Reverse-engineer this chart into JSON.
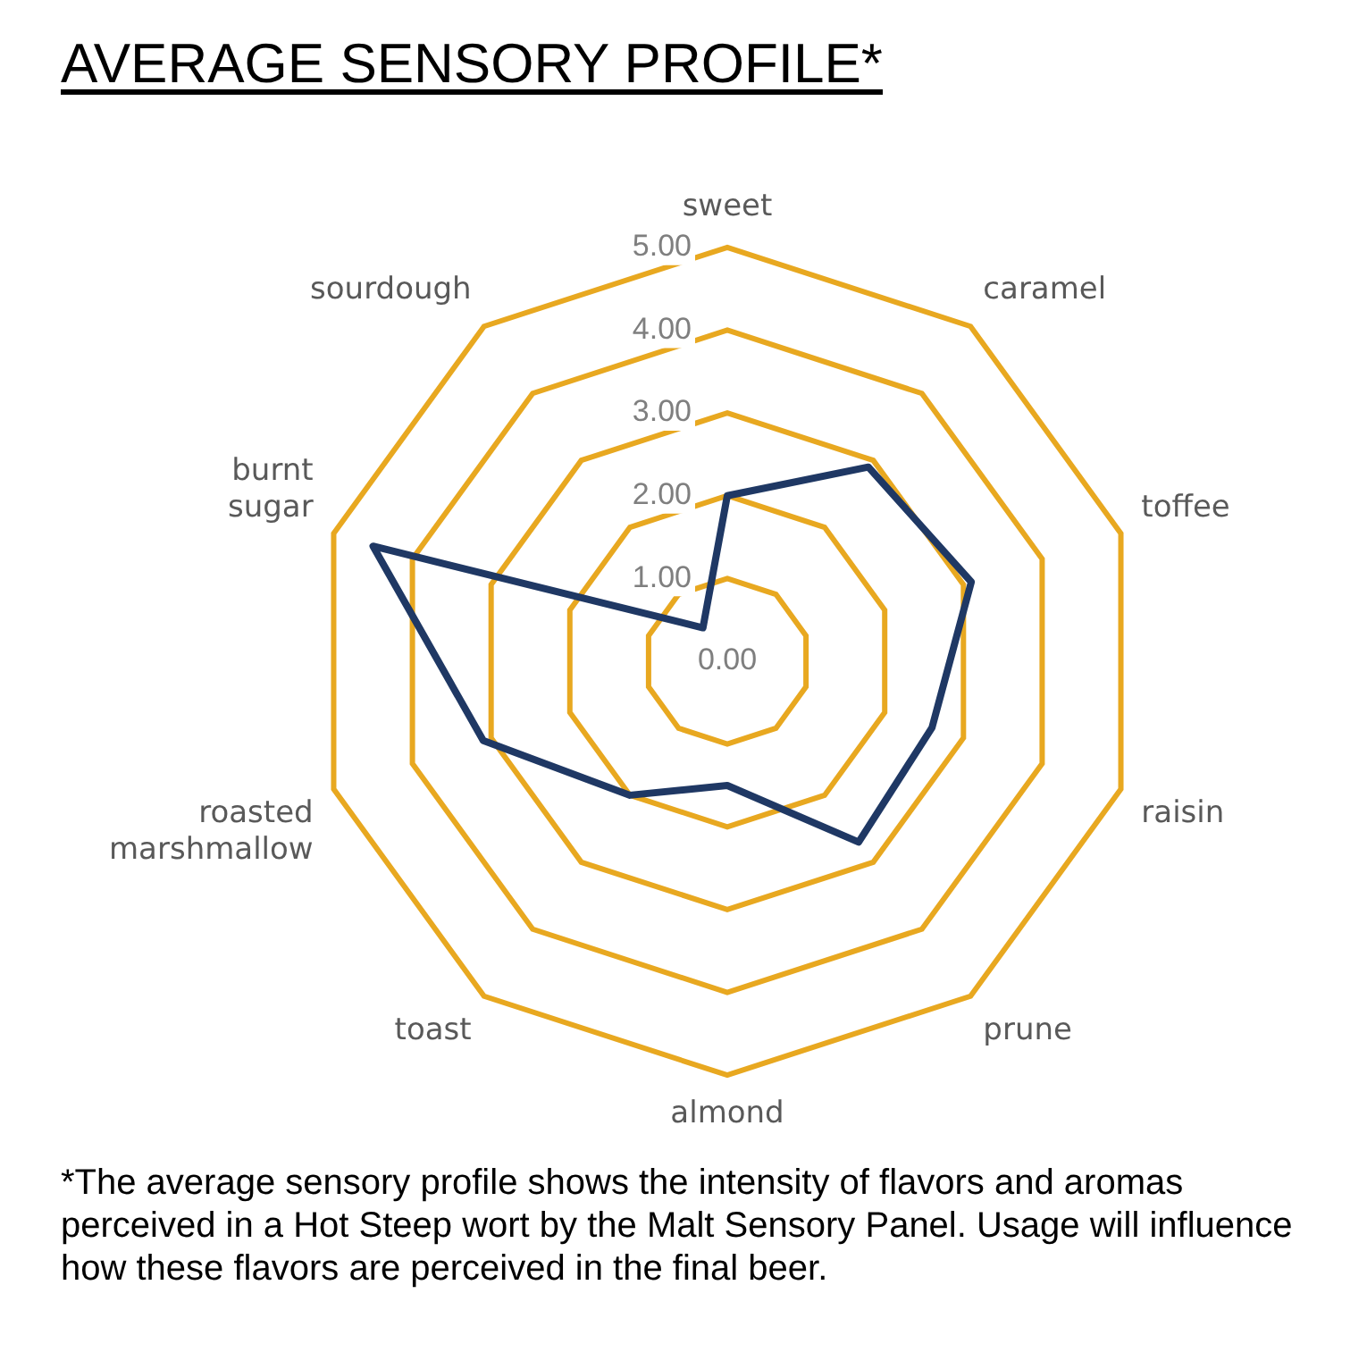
{
  "chart_data": {
    "type": "radar",
    "title": "AVERAGE SENSORY PROFILE*",
    "categories": [
      "sweet",
      "caramel",
      "toffee",
      "raisin",
      "prune",
      "almond",
      "toast",
      "roasted marshmallow",
      "burnt sugar",
      "sourdough"
    ],
    "series": [
      {
        "color": "#1f3864",
        "values": [
          2.0,
          2.9,
          3.1,
          2.6,
          2.7,
          1.5,
          2.0,
          3.1,
          4.5,
          0.5
        ]
      }
    ],
    "ylim": [
      0,
      5
    ],
    "yticks": [
      {
        "value": 0,
        "label": "0.00"
      },
      {
        "value": 1,
        "label": "1.00"
      },
      {
        "value": 2,
        "label": "2.00"
      },
      {
        "value": 3,
        "label": "3.00"
      },
      {
        "value": 4,
        "label": "4.00"
      },
      {
        "value": 5,
        "label": "5.00"
      }
    ],
    "grid": true,
    "marker": "none",
    "line_style": "solid",
    "annotations": [
      "*The average sensory profile shows the intensity of flavors and aromas perceived in a Hot Steep wort by the Malt Sensory Panel. Usage will influence how these flavors are perceived in the final beer."
    ]
  }
}
